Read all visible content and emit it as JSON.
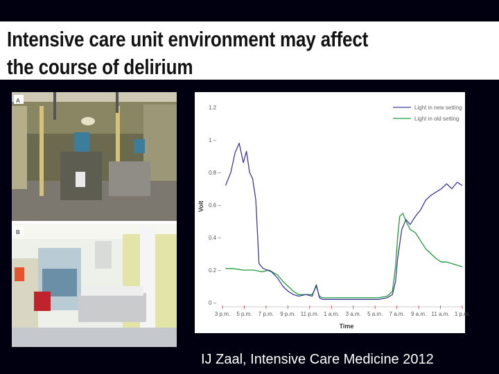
{
  "slide": {
    "title": "Intensive care unit environment may affect\nthe course of delirium",
    "citation": "IJ Zaal, Intensive Care Medicine 2012"
  },
  "photos": {
    "label_a": "A",
    "label_b": "B"
  },
  "colors": {
    "background": "#000010",
    "new_setting": "#3a3a9a",
    "old_setting": "#1f9a3a"
  },
  "chart_data": {
    "type": "line",
    "xlabel": "Time",
    "ylabel": "Volt",
    "ylim": [
      0,
      1.2
    ],
    "yticks": [
      0,
      0.2,
      0.4,
      0.6,
      0.8,
      1,
      1.2
    ],
    "ytick_labels": [
      "0 –",
      "0.2 –",
      "0.4 –",
      "0.6 –",
      "0.8 –",
      "1 –",
      "1.2"
    ],
    "xtick_labels": [
      "3 p.m.",
      "5 p.m.",
      "7 p.m.",
      "9 p.m.",
      "11 p.m.",
      "1 a.m.",
      "3 a.m.",
      "5 a.m.",
      "7 a.m.",
      "9 a.m.",
      "11 a.m.",
      "1 p.m."
    ],
    "xlim": [
      0,
      23
    ],
    "legend_position": "top-right",
    "series": [
      {
        "name": "Light in new setting",
        "color": "#3a3a9a",
        "x": [
          0.3,
          0.8,
          1.2,
          1.6,
          2.0,
          2.3,
          2.6,
          2.9,
          3.2,
          3.5,
          3.9,
          4.3,
          4.7,
          5.0,
          5.3,
          5.8,
          6.3,
          6.8,
          7.3,
          8.0,
          8.6,
          9.0,
          9.3,
          9.6,
          10.2,
          11.0,
          12.0,
          13.0,
          14.0,
          15.0,
          15.8,
          16.3,
          16.6,
          16.8,
          17.2,
          17.6,
          18.0,
          18.5,
          19.0,
          19.5,
          20.0,
          20.5,
          21.0,
          21.5,
          22.0,
          22.5,
          23.0
        ],
        "y": [
          0.72,
          0.8,
          0.92,
          0.98,
          0.86,
          0.93,
          0.8,
          0.76,
          0.63,
          0.24,
          0.21,
          0.2,
          0.19,
          0.17,
          0.15,
          0.1,
          0.07,
          0.05,
          0.04,
          0.05,
          0.04,
          0.11,
          0.03,
          0.02,
          0.02,
          0.02,
          0.02,
          0.02,
          0.02,
          0.02,
          0.03,
          0.05,
          0.13,
          0.27,
          0.45,
          0.51,
          0.48,
          0.53,
          0.57,
          0.63,
          0.66,
          0.68,
          0.7,
          0.73,
          0.7,
          0.74,
          0.72
        ]
      },
      {
        "name": "Light in old setting",
        "color": "#1f9a3a",
        "x": [
          0.3,
          1.0,
          2.0,
          3.0,
          3.8,
          4.5,
          5.0,
          5.3,
          5.8,
          6.3,
          6.8,
          7.3,
          8.0,
          8.6,
          9.0,
          9.3,
          9.6,
          10.2,
          11.0,
          12.0,
          13.0,
          14.0,
          15.0,
          15.8,
          16.3,
          16.6,
          16.8,
          17.0,
          17.3,
          17.6,
          18.0,
          18.5,
          19.0,
          19.5,
          20.0,
          20.5,
          21.0,
          21.5,
          22.0,
          22.5,
          23.0
        ],
        "y": [
          0.21,
          0.21,
          0.2,
          0.2,
          0.19,
          0.2,
          0.18,
          0.17,
          0.13,
          0.1,
          0.07,
          0.05,
          0.05,
          0.05,
          0.1,
          0.04,
          0.03,
          0.03,
          0.03,
          0.03,
          0.03,
          0.03,
          0.03,
          0.04,
          0.07,
          0.22,
          0.4,
          0.53,
          0.55,
          0.5,
          0.45,
          0.43,
          0.38,
          0.33,
          0.3,
          0.27,
          0.25,
          0.25,
          0.24,
          0.23,
          0.22
        ]
      }
    ]
  }
}
